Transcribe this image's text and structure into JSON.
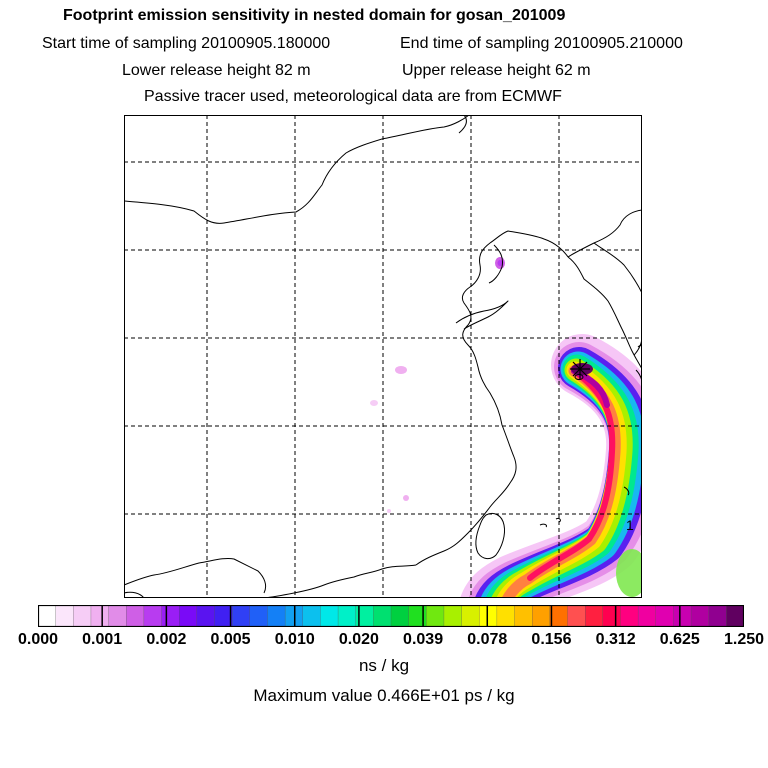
{
  "header": {
    "title": "Footprint emission sensitivity in nested domain for gosan_201009",
    "start_time": "Start time of sampling 20100905.180000",
    "end_time": "End time of sampling 20100905.210000",
    "lower_release": "Lower release height   82 m",
    "upper_release": "Upper release height   62 m",
    "tracer_info": "Passive tracer used, meteorological data are from ECMWF"
  },
  "map": {
    "contour_label": "1"
  },
  "colorbar": {
    "tick_labels": [
      "0.000",
      "0.001",
      "0.002",
      "0.005",
      "0.010",
      "0.020",
      "0.039",
      "0.078",
      "0.156",
      "0.312",
      "0.625",
      "1.250"
    ],
    "colors": [
      "#ffffff",
      "#fbe6fb",
      "#f6cdf6",
      "#f0b0f0",
      "#e18ce8",
      "#cf5fe6",
      "#b83cf0",
      "#9a1ef5",
      "#7a0af7",
      "#5a14f0",
      "#4020f2",
      "#3040f5",
      "#2060f7",
      "#1480f6",
      "#12a0f2",
      "#0cc0ee",
      "#00e8e8",
      "#00f0c8",
      "#00f0a0",
      "#00e070",
      "#00d040",
      "#20e020",
      "#70e810",
      "#a8f000",
      "#d8f000",
      "#ffff00",
      "#ffe000",
      "#ffc000",
      "#ffa000",
      "#ff7000",
      "#ff5050",
      "#ff2040",
      "#ff0050",
      "#ff0080",
      "#f000a0",
      "#e000b0",
      "#c800b0",
      "#b000a0",
      "#900090",
      "#600060"
    ],
    "unit": "ns / kg"
  },
  "footer": {
    "max_value": "Maximum value  0.466E+01 ps / kg"
  }
}
